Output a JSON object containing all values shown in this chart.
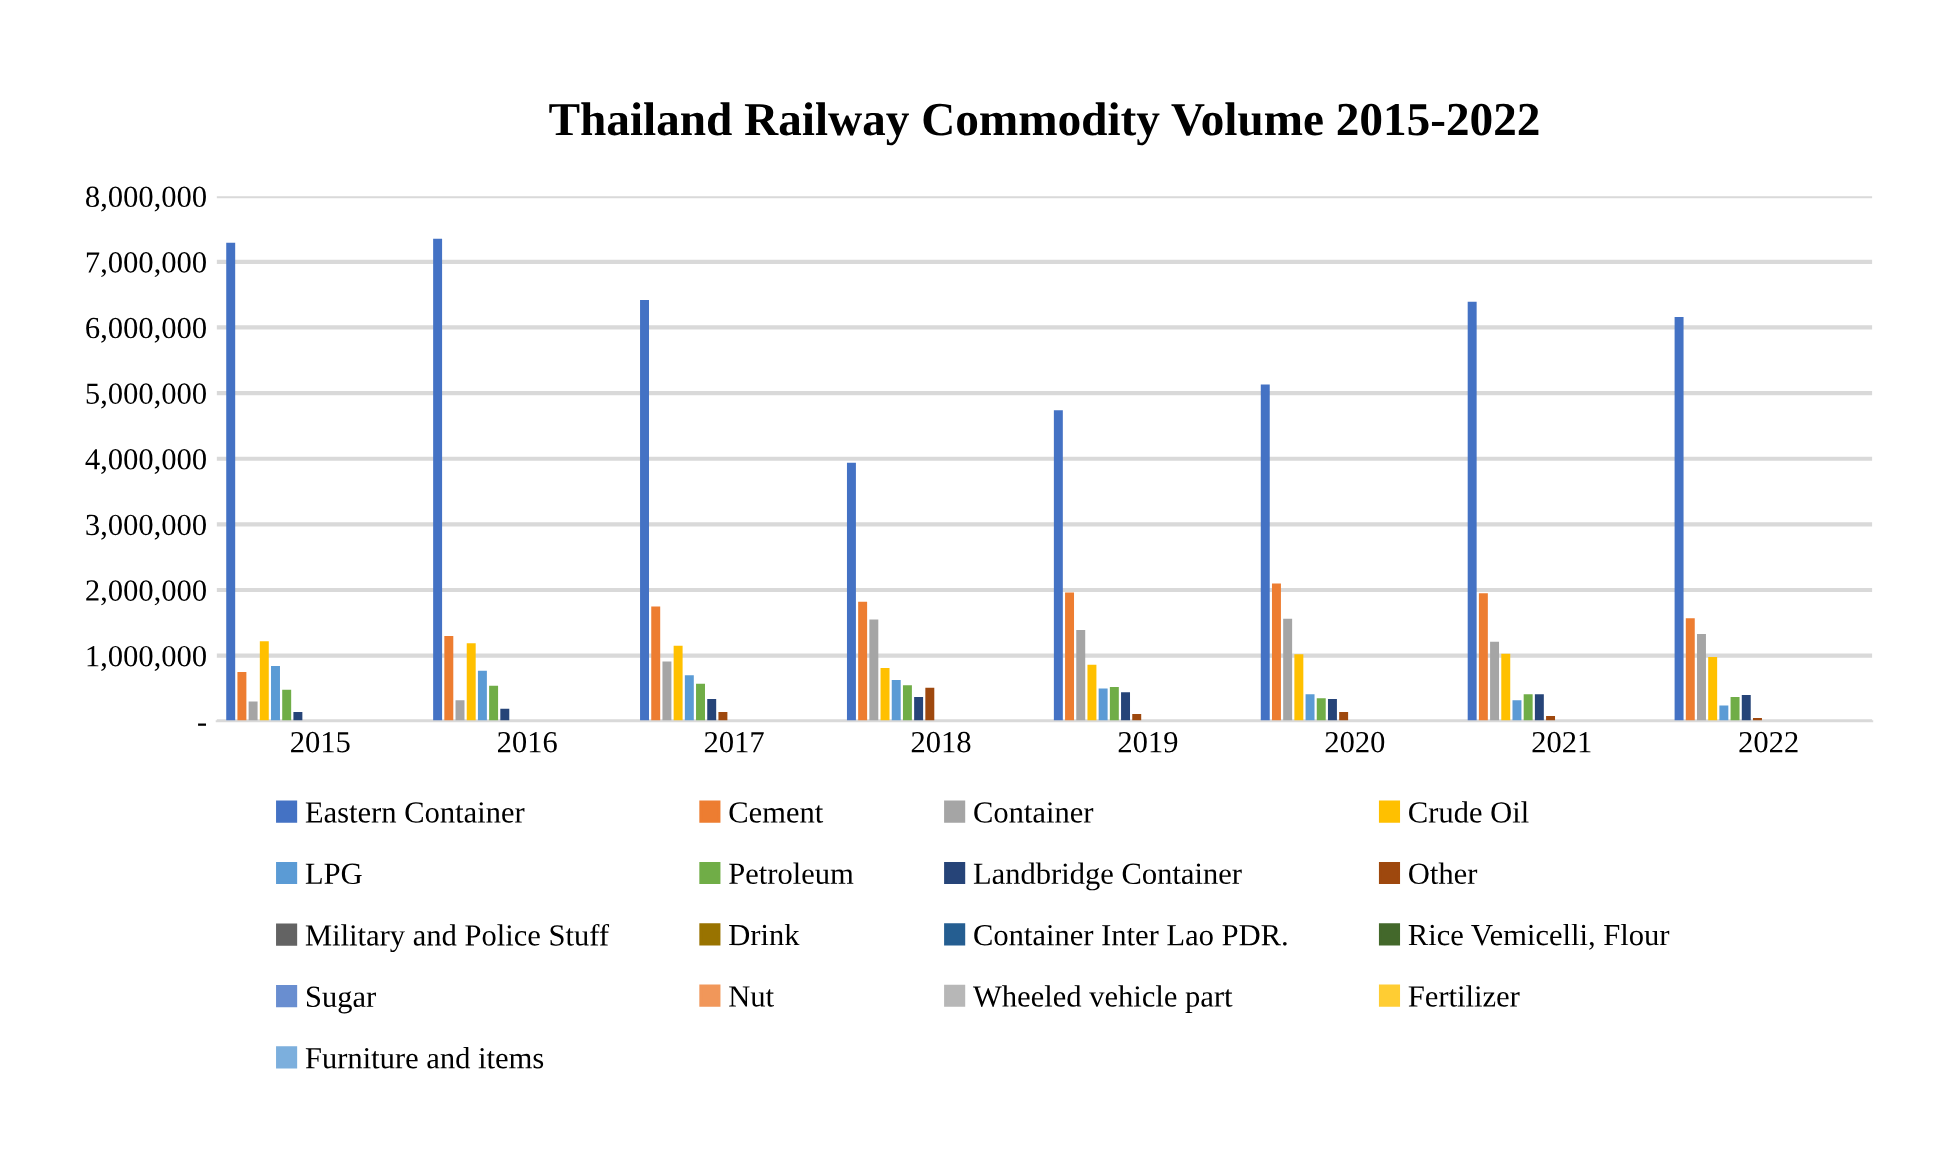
{
  "chart_data": {
    "type": "bar",
    "title": "Thailand Railway Commodity Volume 2015-2022",
    "categories": [
      "2015",
      "2016",
      "2017",
      "2018",
      "2019",
      "2020",
      "2021",
      "2022"
    ],
    "series": [
      {
        "name": "Eastern Container",
        "color": "#4472c4",
        "values": [
          7290000,
          7350000,
          6420000,
          3940000,
          4740000,
          5130000,
          6390000,
          6160000
        ]
      },
      {
        "name": "Cement",
        "color": "#ed7d31",
        "values": [
          750000,
          1300000,
          1750000,
          1820000,
          1960000,
          2100000,
          1950000,
          1570000
        ]
      },
      {
        "name": "Container",
        "color": "#a5a5a5",
        "values": [
          300000,
          320000,
          910000,
          1550000,
          1390000,
          1560000,
          1210000,
          1330000
        ]
      },
      {
        "name": "Crude Oil",
        "color": "#ffc000",
        "values": [
          1220000,
          1190000,
          1150000,
          810000,
          860000,
          1020000,
          1030000,
          980000
        ]
      },
      {
        "name": "LPG",
        "color": "#5b9bd5",
        "values": [
          840000,
          770000,
          700000,
          630000,
          500000,
          410000,
          320000,
          240000
        ]
      },
      {
        "name": "Petroleum",
        "color": "#70ad47",
        "values": [
          480000,
          540000,
          570000,
          550000,
          520000,
          350000,
          410000,
          370000
        ]
      },
      {
        "name": "Landbridge Container",
        "color": "#264478",
        "values": [
          140000,
          190000,
          340000,
          370000,
          440000,
          340000,
          410000,
          400000
        ]
      },
      {
        "name": "Other",
        "color": "#9e480e",
        "values": [
          0,
          0,
          140000,
          510000,
          110000,
          140000,
          80000,
          50000
        ]
      },
      {
        "name": "Military and Police Stuff",
        "color": "#636363",
        "values": [
          0,
          0,
          0,
          0,
          0,
          0,
          0,
          0
        ]
      },
      {
        "name": "Drink",
        "color": "#997300",
        "values": [
          0,
          0,
          0,
          0,
          0,
          0,
          0,
          0
        ]
      },
      {
        "name": "Container Inter Lao PDR.",
        "color": "#255e91",
        "values": [
          0,
          0,
          0,
          0,
          0,
          0,
          0,
          0
        ]
      },
      {
        "name": "Rice Vemicelli, Flour",
        "color": "#43682b",
        "values": [
          0,
          0,
          0,
          0,
          0,
          0,
          0,
          0
        ]
      },
      {
        "name": "Sugar",
        "color": "#698ed0",
        "values": [
          0,
          0,
          0,
          0,
          0,
          0,
          0,
          0
        ]
      },
      {
        "name": "Nut",
        "color": "#f1975a",
        "values": [
          0,
          0,
          0,
          0,
          0,
          0,
          0,
          0
        ]
      },
      {
        "name": "Wheeled vehicle part",
        "color": "#b7b7b7",
        "values": [
          0,
          0,
          0,
          0,
          0,
          0,
          0,
          0
        ]
      },
      {
        "name": "Fertilizer",
        "color": "#ffcd33",
        "values": [
          0,
          0,
          0,
          0,
          0,
          0,
          0,
          0
        ]
      },
      {
        "name": "Furniture and items",
        "color": "#7cafdd",
        "values": [
          0,
          0,
          0,
          0,
          0,
          0,
          0,
          0
        ]
      }
    ],
    "ylim": [
      0,
      8000000
    ],
    "yticks": [
      {
        "value": 0,
        "label": "-"
      },
      {
        "value": 1000000,
        "label": "1,000,000"
      },
      {
        "value": 2000000,
        "label": "2,000,000"
      },
      {
        "value": 3000000,
        "label": "3,000,000"
      },
      {
        "value": 4000000,
        "label": "4,000,000"
      },
      {
        "value": 5000000,
        "label": "5,000,000"
      },
      {
        "value": 6000000,
        "label": "6,000,000"
      },
      {
        "value": 7000000,
        "label": "7,000,000"
      },
      {
        "value": 8000000,
        "label": "8,000,000"
      }
    ],
    "grid": "y",
    "legend": "bottom"
  }
}
